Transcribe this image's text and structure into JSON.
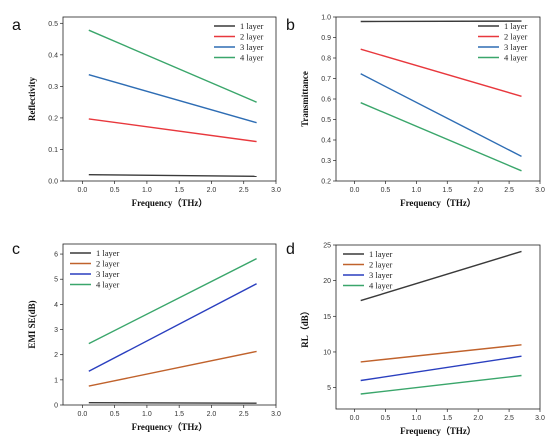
{
  "chart_data": [
    {
      "panel_letter": "a",
      "type": "line",
      "xlabel": "Frequency（THz）",
      "ylabel": "Reflectivity",
      "xlim": [
        -0.3,
        3.0
      ],
      "ylim": [
        0.0,
        0.52
      ],
      "xticks": [
        "0.0",
        "0.5",
        "1.0",
        "1.5",
        "2.0",
        "2.5",
        "3.0"
      ],
      "yticks": [
        "0.0",
        "0.1",
        "0.2",
        "0.3",
        "0.4",
        "0.5"
      ],
      "grid": false,
      "legend_position": "top-right",
      "series": [
        {
          "name": "1 layer",
          "color": "#3a3a3a",
          "x": [
            0.1,
            2.7
          ],
          "y": [
            0.02,
            0.015
          ]
        },
        {
          "name": "2 layer",
          "color": "#e8383d",
          "x": [
            0.1,
            2.7
          ],
          "y": [
            0.197,
            0.125
          ]
        },
        {
          "name": "3 layer",
          "color": "#2e6db4",
          "x": [
            0.1,
            2.7
          ],
          "y": [
            0.337,
            0.185
          ]
        },
        {
          "name": "4 layer",
          "color": "#3aa66b",
          "x": [
            0.1,
            2.7
          ],
          "y": [
            0.478,
            0.25
          ]
        }
      ]
    },
    {
      "panel_letter": "b",
      "type": "line",
      "xlabel": "Frequency（THz）",
      "ylabel": "Transmittance",
      "xlim": [
        -0.3,
        3.0
      ],
      "ylim": [
        0.2,
        1.0
      ],
      "xticks": [
        "0.0",
        "0.5",
        "1.0",
        "1.5",
        "2.0",
        "2.5",
        "3.0"
      ],
      "yticks": [
        "0.2",
        "0.3",
        "0.4",
        "0.5",
        "0.6",
        "0.7",
        "0.8",
        "0.9",
        "1.0"
      ],
      "grid": false,
      "legend_position": "top-right",
      "series": [
        {
          "name": "1 layer",
          "color": "#3a3a3a",
          "x": [
            0.1,
            2.7
          ],
          "y": [
            0.978,
            0.98
          ]
        },
        {
          "name": "2 layer",
          "color": "#e8383d",
          "x": [
            0.1,
            2.7
          ],
          "y": [
            0.843,
            0.613
          ]
        },
        {
          "name": "3 layer",
          "color": "#2e6db4",
          "x": [
            0.1,
            2.7
          ],
          "y": [
            0.723,
            0.32
          ]
        },
        {
          "name": "4 layer",
          "color": "#3aa66b",
          "x": [
            0.1,
            2.7
          ],
          "y": [
            0.582,
            0.25
          ]
        }
      ]
    },
    {
      "panel_letter": "c",
      "type": "line",
      "xlabel": "Frequency（THz）",
      "ylabel": "EMI SE(dB)",
      "xlim": [
        -0.3,
        3.0
      ],
      "ylim": [
        0,
        6.4
      ],
      "xticks": [
        "0.0",
        "0.5",
        "1.0",
        "1.5",
        "2.0",
        "2.5",
        "3.0"
      ],
      "yticks": [
        "0",
        "1",
        "2",
        "3",
        "4",
        "5",
        "6"
      ],
      "grid": false,
      "legend_position": "top-left",
      "series": [
        {
          "name": "1 layer",
          "color": "#3a3a3a",
          "x": [
            0.1,
            2.7
          ],
          "y": [
            0.09,
            0.07
          ]
        },
        {
          "name": "2 layer",
          "color": "#c0622c",
          "x": [
            0.1,
            2.7
          ],
          "y": [
            0.75,
            2.13
          ]
        },
        {
          "name": "3 layer",
          "color": "#2a3fbf",
          "x": [
            0.1,
            2.7
          ],
          "y": [
            1.34,
            4.82
          ]
        },
        {
          "name": "4 layer",
          "color": "#3aa66b",
          "x": [
            0.1,
            2.7
          ],
          "y": [
            2.44,
            5.82
          ]
        }
      ]
    },
    {
      "panel_letter": "d",
      "type": "line",
      "xlabel": "Frequency（THz）",
      "ylabel": "RL（dB）",
      "xlim": [
        -0.3,
        3.0
      ],
      "ylim": [
        2,
        25
      ],
      "xticks": [
        "0.0",
        "0.5",
        "1.0",
        "1.5",
        "2.0",
        "2.5",
        "3.0"
      ],
      "yticks": [
        "5",
        "10",
        "15",
        "20",
        "25"
      ],
      "grid": false,
      "legend_position": "top-left",
      "series": [
        {
          "name": "1 layer",
          "color": "#3a3a3a",
          "x": [
            0.1,
            2.7
          ],
          "y": [
            17.2,
            24.1
          ]
        },
        {
          "name": "2 layer",
          "color": "#c0622c",
          "x": [
            0.1,
            2.7
          ],
          "y": [
            8.6,
            11.0
          ]
        },
        {
          "name": "3 layer",
          "color": "#2a3fbf",
          "x": [
            0.1,
            2.7
          ],
          "y": [
            6.0,
            9.4
          ]
        },
        {
          "name": "4 layer",
          "color": "#3aa66b",
          "x": [
            0.1,
            2.7
          ],
          "y": [
            4.1,
            6.7
          ]
        }
      ]
    }
  ]
}
